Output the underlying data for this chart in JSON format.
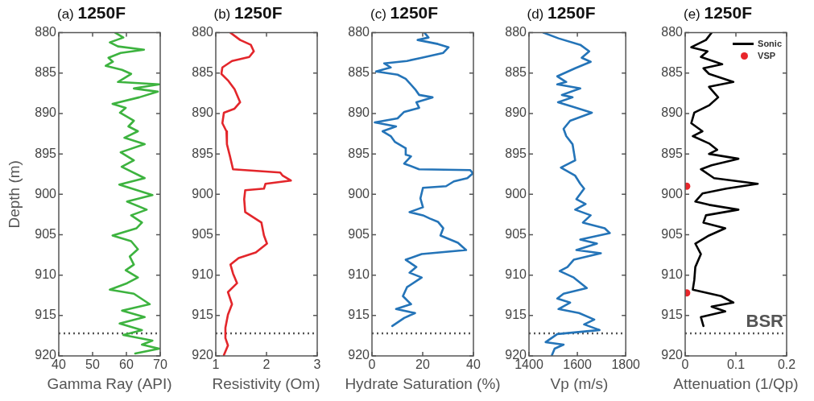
{
  "chart_data": [
    {
      "type": "line",
      "title": "(a) 1250F",
      "xlabel": "Gamma Ray (API)",
      "ylabel": "Depth (m)",
      "xlim": [
        40,
        70
      ],
      "xticks": [
        40,
        50,
        60,
        70
      ],
      "ylim": [
        920,
        880
      ],
      "yticks": [
        880,
        885,
        890,
        895,
        900,
        905,
        910,
        915,
        920
      ],
      "ref_lines": [
        {
          "axis": "y",
          "value": 917.2,
          "color": "#555555",
          "line_style": "dotted"
        }
      ],
      "series": [
        {
          "color": "#3db33f",
          "x": [
            56.7,
            59.1,
            55.1,
            57.5,
            65.2,
            58.3,
            54.7,
            56,
            53.9,
            58.7,
            61.4,
            57.5,
            69.7,
            62.2,
            69.3,
            63.8,
            55.9,
            59.8,
            58.1,
            62.2,
            60.6,
            63.4,
            59.4,
            65.4,
            58.3,
            62.2,
            58.6,
            65.4,
            57.9,
            67.7,
            60.2,
            66,
            61.4,
            64.6,
            63,
            55.9,
            61.4,
            63.4,
            61,
            62.2,
            59.8,
            63.4,
            60.2,
            55.1,
            62.2,
            66.9,
            58.7,
            65.4,
            58,
            64.6,
            59.1,
            67.7,
            64.6,
            69.7,
            62.6
          ],
          "values": [
            880,
            880.6,
            881.2,
            881.7,
            882.1,
            882.5,
            883.1,
            883.6,
            884.1,
            884.6,
            885.1,
            886.1,
            886.4,
            886.9,
            887.3,
            888,
            888.8,
            889.3,
            889.9,
            890.9,
            891.6,
            892.2,
            893,
            893.8,
            894.8,
            895.8,
            896.6,
            898,
            898.8,
            900.1,
            900.9,
            901.9,
            902.6,
            903.5,
            904.2,
            905.1,
            905.8,
            906.8,
            907.7,
            908.7,
            909.4,
            910.3,
            911,
            911.8,
            912.3,
            913.6,
            914.4,
            915.2,
            916,
            916.8,
            917.4,
            918.1,
            918.6,
            919.1,
            919.7
          ]
        }
      ]
    },
    {
      "type": "line",
      "title": "(b) 1250F",
      "xlabel": "Resistivity (Om)",
      "xlim": [
        1,
        3
      ],
      "xticks": [
        1,
        2,
        3
      ],
      "ylim": [
        920,
        880
      ],
      "yticks": [
        880,
        885,
        890,
        895,
        900,
        905,
        910,
        915,
        920
      ],
      "ref_lines": [
        {
          "axis": "y",
          "value": 917.2,
          "color": "#555555",
          "line_style": "dotted"
        }
      ],
      "series": [
        {
          "color": "#e3262b",
          "x": [
            1.29,
            1.48,
            1.69,
            1.75,
            1.66,
            1.32,
            1.13,
            1.11,
            1.24,
            1.37,
            1.48,
            1.37,
            1.16,
            1.13,
            1.21,
            1.22,
            1.28,
            1.34,
            2.27,
            2.32,
            2.48,
            1.98,
            1.95,
            1.58,
            1.56,
            1.58,
            1.9,
            1.95,
            2.01,
            1.79,
            1.45,
            1.29,
            1.34,
            1.42,
            1.24,
            1.32,
            1.24,
            1.19,
            1.19,
            1.24,
            1.16
          ],
          "values": [
            880,
            880.9,
            881.5,
            882.3,
            883,
            883.5,
            884.3,
            885.1,
            885.9,
            887,
            888.6,
            889.4,
            889.9,
            891.2,
            892.2,
            893.8,
            895.3,
            896.9,
            897.3,
            897.7,
            898.3,
            898.7,
            899.3,
            899.5,
            900.6,
            902.2,
            903.5,
            905.1,
            906.1,
            907.2,
            907.9,
            908.7,
            909.8,
            911,
            912.1,
            913.6,
            914.9,
            916.5,
            917.8,
            918.7,
            919.9
          ]
        }
      ]
    },
    {
      "type": "line",
      "title": "(c) 1250F",
      "xlabel": "Hydrate Saturation (%)",
      "xlim": [
        0,
        40
      ],
      "xticks": [
        0,
        20,
        40
      ],
      "ylim": [
        920,
        880
      ],
      "yticks": [
        880,
        885,
        890,
        895,
        900,
        905,
        910,
        915,
        920
      ],
      "ref_lines": [
        {
          "axis": "y",
          "value": 917.2,
          "color": "#555555",
          "line_style": "dotted"
        }
      ],
      "series": [
        {
          "color": "#2474b8",
          "x": [
            20.7,
            22.3,
            18,
            26,
            30.2,
            28.1,
            19.6,
            13.8,
            4.8,
            7.4,
            1.6,
            10.1,
            13.3,
            17,
            18.6,
            23.9,
            17.5,
            18.6,
            12.7,
            10.1,
            1.1,
            9.5,
            4.2,
            7.4,
            9,
            13.3,
            13.3,
            15.4,
            12.7,
            18.6,
            38.7,
            39.8,
            37.6,
            32.3,
            29.2,
            20.1,
            19.1,
            20.1,
            14.8,
            20.1,
            22.8,
            26,
            28.1,
            27,
            33.9,
            37.1,
            19.6,
            13.3,
            17.5,
            14.8,
            19.6,
            13.8,
            12.2,
            15.4,
            9.5,
            17,
            12.7,
            8
          ],
          "values": [
            880,
            880.6,
            880.9,
            881.4,
            881.8,
            882.5,
            883.1,
            883.5,
            883.8,
            884.3,
            884.8,
            885.2,
            885.7,
            887,
            887.7,
            888,
            888.6,
            889.3,
            889.8,
            890.6,
            891.1,
            891.6,
            892.2,
            892.8,
            893.5,
            894.3,
            895.1,
            895.3,
            896.2,
            896.9,
            897,
            897.4,
            898,
            898.4,
            899,
            899.2,
            900.5,
            901.6,
            902.2,
            902.6,
            903,
            903.4,
            904.2,
            905.1,
            906,
            906.9,
            907.4,
            908.1,
            909,
            909.7,
            910.3,
            911.5,
            912.6,
            913.6,
            914.2,
            914.7,
            915.3,
            916.3
          ]
        }
      ]
    },
    {
      "type": "line",
      "title": "(d) 1250F",
      "xlabel": "Vp (m/s)",
      "xlim": [
        1400,
        1800
      ],
      "xticks": [
        1400,
        1600,
        1800
      ],
      "ylim": [
        920,
        880
      ],
      "yticks": [
        880,
        885,
        890,
        895,
        900,
        905,
        910,
        915,
        920
      ],
      "ref_lines": [
        {
          "axis": "y",
          "value": 917.2,
          "color": "#555555",
          "line_style": "dotted"
        }
      ],
      "series": [
        {
          "color": "#2474b8",
          "x": [
            1460,
            1522,
            1612,
            1649,
            1618,
            1655,
            1591,
            1517,
            1554,
            1517,
            1612,
            1536,
            1580,
            1520,
            1575,
            1660,
            1570,
            1543,
            1554,
            1580,
            1591,
            1532,
            1591,
            1612,
            1628,
            1596,
            1634,
            1591,
            1655,
            1623,
            1713,
            1734,
            1612,
            1681,
            1596,
            1697,
            1585,
            1559,
            1527,
            1585,
            1639,
            1543,
            1517,
            1570,
            1522,
            1607,
            1670,
            1628,
            1692,
            1517,
            1469,
            1543,
            1506,
            1495
          ],
          "values": [
            880,
            880.7,
            881.5,
            882.3,
            883.1,
            883.6,
            884.4,
            885.4,
            886.1,
            886.4,
            886.9,
            887.7,
            888,
            888.6,
            889.1,
            889.9,
            890.9,
            891.9,
            892.8,
            893.8,
            895.8,
            896.7,
            897.7,
            898.7,
            899.3,
            900.6,
            901.2,
            901.9,
            902.6,
            903.5,
            904.2,
            904.8,
            905.6,
            906.1,
            906.9,
            907.3,
            908.1,
            909,
            909.5,
            910.3,
            911.6,
            912.3,
            912.9,
            913.4,
            914.2,
            914.7,
            915.5,
            916.1,
            916.8,
            917.3,
            918.3,
            918.6,
            919.1,
            919.9
          ]
        }
      ]
    },
    {
      "type": "line",
      "title": "(e) 1250F",
      "xlabel": "Attenuation (1/Qp)",
      "xlim": [
        0,
        0.2
      ],
      "xticks": [
        0,
        0.1,
        0.2
      ],
      "ylim": [
        920,
        880
      ],
      "yticks": [
        880,
        885,
        890,
        895,
        900,
        905,
        910,
        915,
        920
      ],
      "legend": "top right",
      "ref_lines": [
        {
          "axis": "y",
          "value": 917.2,
          "label": "BSR",
          "color": "#555555",
          "line_style": "dotted"
        }
      ],
      "series": [
        {
          "name": "Sonic",
          "color": "#000000",
          "x": [
            0.052,
            0.041,
            0.012,
            0.044,
            0.031,
            0.073,
            0.036,
            0.047,
            0.095,
            0.047,
            0.065,
            0.047,
            0.018,
            0.012,
            0.034,
            0.015,
            0.047,
            0.063,
            0.047,
            0.105,
            0.052,
            0.031,
            0.057,
            0.143,
            0.081,
            0.034,
            0.02,
            0.047,
            0.105,
            0.041,
            0.036,
            0.079,
            0.047,
            0.02,
            0.031,
            0.02,
            0.018,
            0.015,
            0.071,
            0.095,
            0.052,
            0.079,
            0.031,
            0.036
          ],
          "values": [
            880,
            880.9,
            881.8,
            882.3,
            883,
            883.9,
            884.4,
            885.1,
            886.1,
            886.7,
            888,
            889,
            889.9,
            891.2,
            892.2,
            892.8,
            893.7,
            894.5,
            895,
            895.6,
            896.4,
            896.9,
            898,
            898.7,
            899.3,
            899.9,
            900.9,
            901.3,
            901.9,
            902.6,
            903.5,
            904.2,
            905.1,
            906.1,
            907.4,
            909,
            910.6,
            911.8,
            912.6,
            913.4,
            913.9,
            914.5,
            915.2,
            916.3
          ]
        },
        {
          "name": "VSP",
          "type": "scatter",
          "marker": "circle",
          "color": "#e8262b",
          "x": [
            0.003,
            0.003
          ],
          "values": [
            899,
            912.2
          ]
        }
      ]
    }
  ]
}
